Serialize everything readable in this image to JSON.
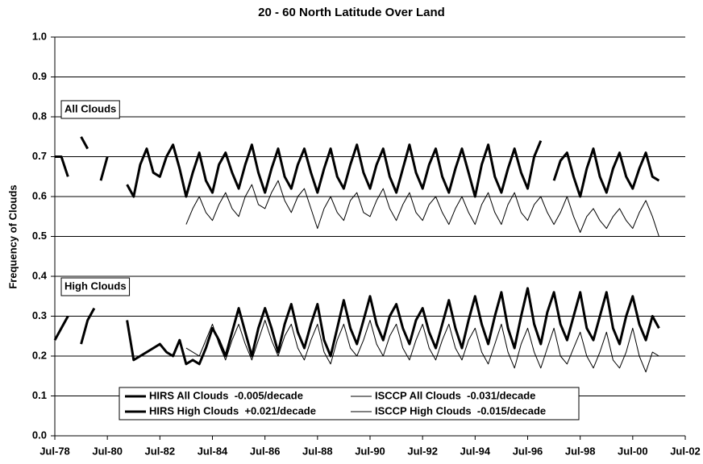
{
  "chart_data": {
    "type": "line",
    "title": "20 - 60 North Latitude Over Land",
    "y_label": "Frequency of Clouds",
    "annotations": [
      "All Clouds",
      "High Clouds"
    ],
    "xlim": [
      1978.5,
      2002.5
    ],
    "xticks": [
      {
        "value": 1978.5,
        "label": "Jul-78"
      },
      {
        "value": 1980.5,
        "label": "Jul-80"
      },
      {
        "value": 1982.5,
        "label": "Jul-82"
      },
      {
        "value": 1984.5,
        "label": "Jul-84"
      },
      {
        "value": 1986.5,
        "label": "Jul-86"
      },
      {
        "value": 1988.5,
        "label": "Jul-88"
      },
      {
        "value": 1990.5,
        "label": "Jul-90"
      },
      {
        "value": 1992.5,
        "label": "Jul-92"
      },
      {
        "value": 1994.5,
        "label": "Jul-94"
      },
      {
        "value": 1996.5,
        "label": "Jul-96"
      },
      {
        "value": 1998.5,
        "label": "Jul-98"
      },
      {
        "value": 2000.5,
        "label": "Jul-00"
      },
      {
        "value": 2002.5,
        "label": "Jul-02"
      }
    ],
    "ylim": [
      0,
      1
    ],
    "yticks": [
      {
        "value": 0,
        "label": "0.0"
      },
      0.1,
      0.2,
      0.3,
      0.4,
      0.5,
      0.6,
      0.7,
      0.8,
      0.9,
      {
        "value": 1,
        "label": "1.0"
      }
    ],
    "grid": true,
    "legend": "bottom",
    "x": [
      1978.5,
      1978.75,
      1979,
      1979.25,
      1979.5,
      1979.75,
      1980,
      1980.25,
      1980.5,
      1980.75,
      1981,
      1981.25,
      1981.5,
      1981.75,
      1982,
      1982.25,
      1982.5,
      1982.75,
      1983,
      1983.25,
      1983.5,
      1983.75,
      1984,
      1984.25,
      1984.5,
      1984.75,
      1985,
      1985.25,
      1985.5,
      1985.75,
      1986,
      1986.25,
      1986.5,
      1986.75,
      1987,
      1987.25,
      1987.5,
      1987.75,
      1988,
      1988.25,
      1988.5,
      1988.75,
      1989,
      1989.25,
      1989.5,
      1989.75,
      1990,
      1990.25,
      1990.5,
      1990.75,
      1991,
      1991.25,
      1991.5,
      1991.75,
      1992,
      1992.25,
      1992.5,
      1992.75,
      1993,
      1993.25,
      1993.5,
      1993.75,
      1994,
      1994.25,
      1994.5,
      1994.75,
      1995,
      1995.25,
      1995.5,
      1995.75,
      1996,
      1996.25,
      1996.5,
      1996.75,
      1997,
      1997.25,
      1997.5,
      1997.75,
      1998,
      1998.25,
      1998.5,
      1998.75,
      1999,
      1999.25,
      1999.5,
      1999.75,
      2000,
      2000.25,
      2000.5,
      2000.75,
      2001,
      2001.25,
      2001.5
    ],
    "series": [
      {
        "name": "HIRS All Clouds  -0.005/decade",
        "color": "#000000",
        "width": 3,
        "values": [
          0.7,
          0.7,
          0.65,
          null,
          0.75,
          0.72,
          null,
          0.64,
          0.7,
          null,
          null,
          0.63,
          0.6,
          0.68,
          0.72,
          0.66,
          0.65,
          0.7,
          0.73,
          0.67,
          0.6,
          0.66,
          0.71,
          0.64,
          0.61,
          0.68,
          0.71,
          0.66,
          0.62,
          0.68,
          0.73,
          0.66,
          0.61,
          0.67,
          0.72,
          0.65,
          0.62,
          0.68,
          0.72,
          0.66,
          0.61,
          0.67,
          0.72,
          0.65,
          0.62,
          0.68,
          0.73,
          0.66,
          0.62,
          0.68,
          0.72,
          0.65,
          0.61,
          0.67,
          0.73,
          0.66,
          0.62,
          0.68,
          0.72,
          0.65,
          0.61,
          0.67,
          0.72,
          0.66,
          0.6,
          0.68,
          0.73,
          0.65,
          0.61,
          0.67,
          0.72,
          0.66,
          0.62,
          0.7,
          0.74,
          null,
          0.64,
          0.69,
          0.71,
          0.65,
          0.6,
          0.67,
          0.72,
          0.65,
          0.61,
          0.67,
          0.71,
          0.65,
          0.62,
          0.67,
          0.71,
          0.65,
          0.64
        ]
      },
      {
        "name": "ISCCP All Clouds  -0.031/decade",
        "color": "#000000",
        "width": 1,
        "values": [
          null,
          null,
          null,
          null,
          null,
          null,
          null,
          null,
          null,
          null,
          null,
          null,
          null,
          null,
          null,
          null,
          null,
          null,
          null,
          null,
          0.53,
          0.57,
          0.6,
          0.56,
          0.54,
          0.58,
          0.61,
          0.57,
          0.55,
          0.6,
          0.63,
          0.58,
          0.57,
          0.61,
          0.64,
          0.59,
          0.56,
          0.6,
          0.62,
          0.57,
          0.52,
          0.57,
          0.6,
          0.56,
          0.54,
          0.59,
          0.61,
          0.56,
          0.55,
          0.59,
          0.62,
          0.57,
          0.54,
          0.58,
          0.61,
          0.56,
          0.54,
          0.58,
          0.6,
          0.56,
          0.53,
          0.57,
          0.6,
          0.56,
          0.53,
          0.58,
          0.61,
          0.56,
          0.53,
          0.58,
          0.61,
          0.56,
          0.54,
          0.58,
          0.6,
          0.56,
          0.53,
          0.56,
          0.6,
          0.55,
          0.51,
          0.55,
          0.57,
          0.54,
          0.52,
          0.55,
          0.57,
          0.54,
          0.52,
          0.56,
          0.59,
          0.55,
          0.5
        ]
      },
      {
        "name": "HIRS High Clouds  +0.021/decade",
        "color": "#000000",
        "width": 3,
        "values": [
          0.24,
          0.27,
          0.3,
          null,
          0.23,
          0.29,
          0.32,
          null,
          0.24,
          null,
          null,
          0.29,
          0.19,
          0.2,
          0.21,
          0.22,
          0.23,
          0.21,
          0.2,
          0.24,
          0.18,
          0.19,
          0.18,
          0.22,
          0.27,
          0.24,
          0.2,
          0.26,
          0.32,
          0.26,
          0.2,
          0.27,
          0.32,
          0.27,
          0.21,
          0.28,
          0.33,
          0.26,
          0.22,
          0.28,
          0.33,
          0.24,
          0.2,
          0.27,
          0.34,
          0.27,
          0.23,
          0.29,
          0.35,
          0.28,
          0.24,
          0.3,
          0.33,
          0.27,
          0.23,
          0.29,
          0.32,
          0.26,
          0.22,
          0.28,
          0.34,
          0.27,
          0.22,
          0.29,
          0.35,
          0.28,
          0.23,
          0.3,
          0.36,
          0.27,
          0.22,
          0.3,
          0.37,
          0.28,
          0.23,
          0.31,
          0.36,
          0.28,
          0.24,
          0.3,
          0.36,
          0.27,
          0.24,
          0.3,
          0.36,
          0.27,
          0.23,
          0.3,
          0.35,
          0.28,
          0.24,
          0.3,
          0.27
        ]
      },
      {
        "name": "ISCCP High Clouds  -0.015/decade",
        "color": "#000000",
        "width": 1,
        "values": [
          null,
          null,
          null,
          null,
          null,
          null,
          null,
          null,
          null,
          null,
          null,
          null,
          null,
          null,
          null,
          null,
          null,
          null,
          null,
          null,
          0.22,
          0.21,
          0.2,
          0.24,
          0.28,
          0.23,
          0.19,
          0.24,
          0.28,
          0.23,
          0.19,
          0.24,
          0.29,
          0.24,
          0.2,
          0.25,
          0.28,
          0.22,
          0.19,
          0.24,
          0.28,
          0.21,
          0.18,
          0.24,
          0.28,
          0.22,
          0.2,
          0.24,
          0.29,
          0.23,
          0.2,
          0.25,
          0.28,
          0.22,
          0.19,
          0.24,
          0.28,
          0.22,
          0.19,
          0.24,
          0.28,
          0.22,
          0.19,
          0.24,
          0.27,
          0.21,
          0.18,
          0.23,
          0.28,
          0.21,
          0.17,
          0.23,
          0.27,
          0.21,
          0.17,
          0.22,
          0.27,
          0.2,
          0.18,
          0.22,
          0.26,
          0.2,
          0.17,
          0.21,
          0.26,
          0.19,
          0.17,
          0.21,
          0.27,
          0.2,
          0.16,
          0.21,
          0.2
        ]
      }
    ]
  }
}
